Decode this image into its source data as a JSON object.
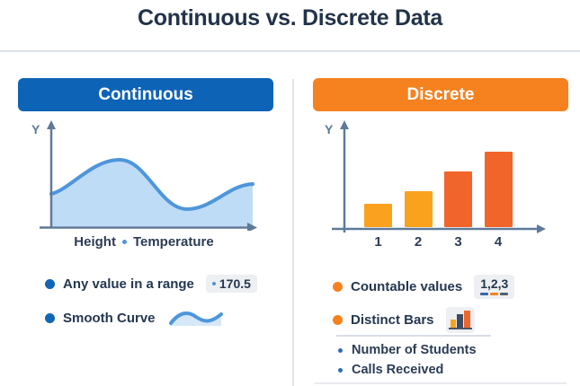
{
  "title": "Continuous vs. Discrete Data",
  "colors": {
    "blue_header": "#0D63B5",
    "orange_header": "#F5821F",
    "curve_stroke": "#4E96DB",
    "curve_fill": "#BEDCF6",
    "axis": "#5E7A9A",
    "text_dark": "#243750",
    "bullet_blue": "#1166B5",
    "bullet_orange": "#F5821F",
    "badge_bg": "#EDEFF2"
  },
  "continuous": {
    "header": "Continuous",
    "chart": {
      "type": "area",
      "y_axis_label": "Y",
      "caption": [
        "Height",
        "Temperature"
      ]
    },
    "bullets": [
      {
        "label": "Any value in a range",
        "badge": "170.5"
      },
      {
        "label": "Smooth Curve"
      }
    ]
  },
  "discrete": {
    "header": "Discrete",
    "chart": {
      "type": "bar",
      "y_axis_label": "Y",
      "categories": [
        "1",
        "2",
        "3",
        "4"
      ],
      "relative_heights": [
        26,
        40,
        62,
        84
      ],
      "bar_colors": [
        "#FAA21E",
        "#FAA21E",
        "#F2652A",
        "#F2652A"
      ]
    },
    "bullets": [
      {
        "label": "Countable values",
        "badge": "1,2,3",
        "badge_dash_colors": [
          "#3D66A6",
          "#F5821F",
          "#55606E"
        ]
      },
      {
        "label": "Distinct Bars"
      }
    ],
    "examples": [
      "Number of Students",
      "Calls Received"
    ]
  }
}
